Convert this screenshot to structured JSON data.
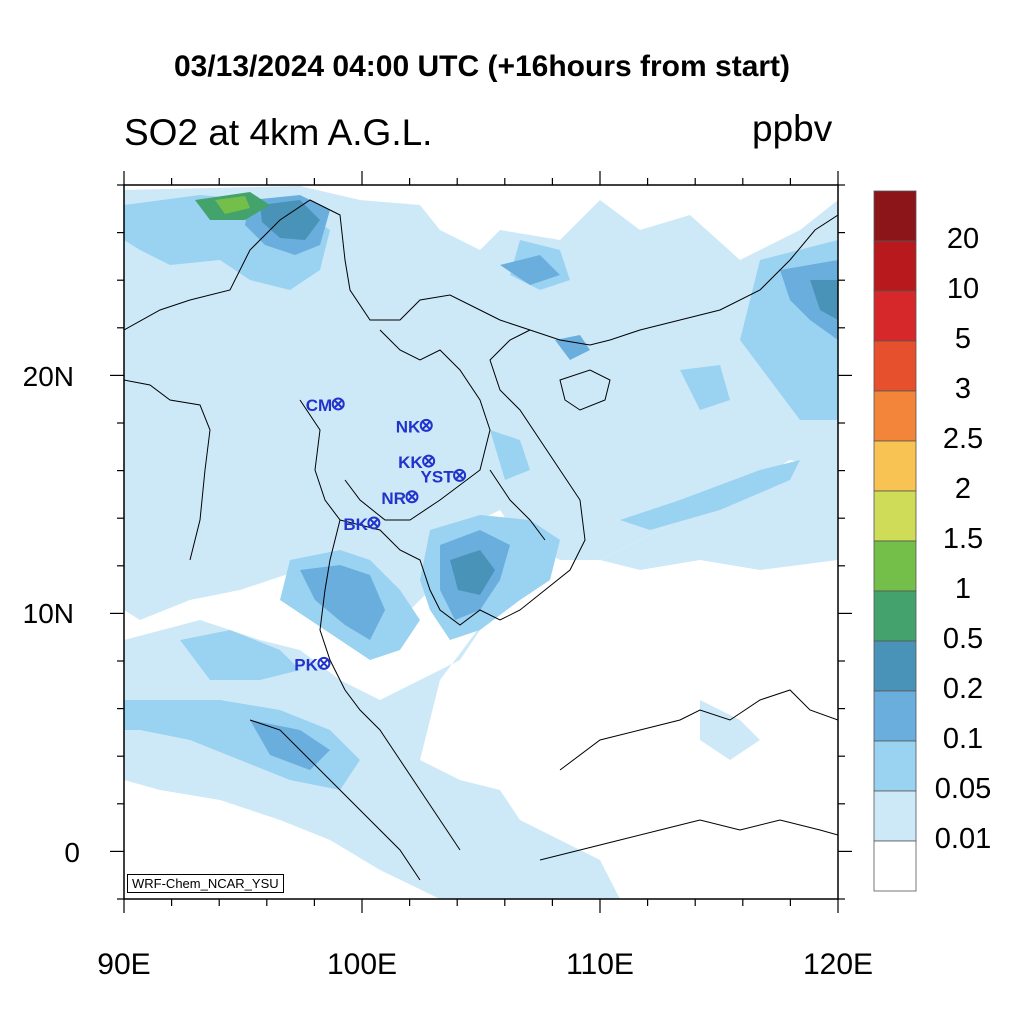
{
  "title": "03/13/2024 04:00 UTC (+16hours from start)",
  "subtitle": "SO2 at 4km A.G.L.",
  "units": "ppbv",
  "credit": "WRF-Chem_NCAR_YSU",
  "axes": {
    "x_ticks": [
      "90E",
      "100E",
      "110E",
      "120E"
    ],
    "y_ticks": [
      "20N",
      "10N",
      "0"
    ],
    "lon_range": [
      90,
      120
    ],
    "lat_range": [
      -2,
      28
    ]
  },
  "colorbar": {
    "levels": [
      "20",
      "10",
      "5",
      "3",
      "2.5",
      "2",
      "1.5",
      "1",
      "0.5",
      "0.2",
      "0.1",
      "0.05",
      "0.01"
    ],
    "colors": [
      "#8b1518",
      "#b8191d",
      "#d6282b",
      "#e6502d",
      "#f3853a",
      "#f8c352",
      "#cfdc58",
      "#74bf4a",
      "#44a36c",
      "#4a93b8",
      "#6aaede",
      "#9ad2f1",
      "#cde9f8",
      "#ffffff"
    ]
  },
  "stations": [
    {
      "id": "CM",
      "lon": 99.0,
      "lat": 18.8
    },
    {
      "id": "NK",
      "lon": 102.7,
      "lat": 17.9
    },
    {
      "id": "KK",
      "lon": 102.8,
      "lat": 16.4
    },
    {
      "id": "YST",
      "lon": 104.1,
      "lat": 15.8
    },
    {
      "id": "NR",
      "lon": 102.1,
      "lat": 14.9
    },
    {
      "id": "BK",
      "lon": 100.5,
      "lat": 13.8
    },
    {
      "id": "PK",
      "lon": 98.4,
      "lat": 7.9
    }
  ]
}
